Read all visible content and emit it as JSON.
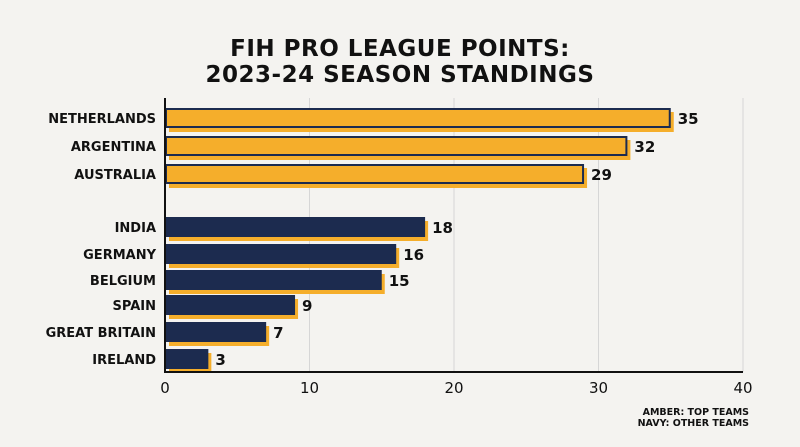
{
  "chart_data": {
    "type": "bar",
    "orientation": "horizontal",
    "title_lines": [
      "FIH PRO LEAGUE POINTS:",
      "2023-24 SEASON STANDINGS"
    ],
    "xlabel": "",
    "ylabel": "",
    "xlim": [
      0,
      40
    ],
    "xticks": [
      0,
      10,
      20,
      30,
      40
    ],
    "grid": true,
    "categories": [
      "NETHERLANDS",
      "ARGENTINA",
      "AUSTRALIA",
      "INDIA",
      "GERMANY",
      "BELGIUM",
      "SPAIN",
      "GREAT BRITAIN",
      "IRELAND"
    ],
    "values": [
      35,
      32,
      29,
      18,
      16,
      15,
      9,
      7,
      3
    ],
    "groups": [
      "top",
      "top",
      "top",
      "other",
      "other",
      "other",
      "other",
      "other",
      "other"
    ],
    "legend_notes": [
      "AMBER: TOP TEAMS",
      "NAVY: OTHER TEAMS"
    ],
    "legend_position": "bottom-right"
  },
  "colors": {
    "amber": "#f5ae2b",
    "navy": "#1c2b4f",
    "background": "#f4f3f0",
    "grid": "#d6d6d6"
  }
}
